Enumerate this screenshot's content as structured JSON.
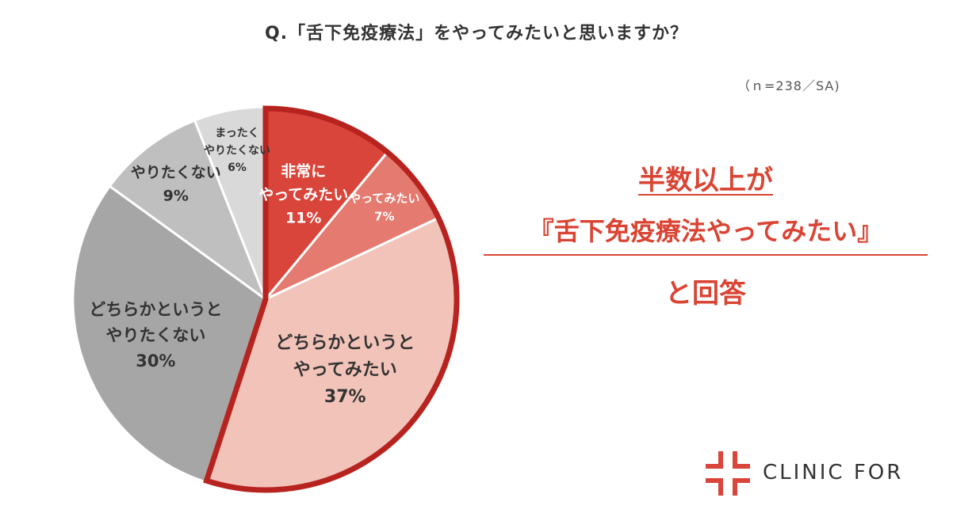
{
  "title": "Q.「舌下免疫療法」をやってみたいと思いますか？",
  "sample_note": "（ｎ=238／SA)",
  "message": {
    "line1": "半数以上が",
    "line2": "『舌下免疫療法やってみたい』",
    "line3": "と回答"
  },
  "logo": {
    "text": "CLINIC FOR"
  },
  "chart_data": {
    "type": "pie",
    "title": "",
    "slices": [
      {
        "label": "非常に\nやってみたい",
        "value": 11,
        "display": "11%",
        "color": "#d9453a",
        "highlight": true
      },
      {
        "label": "やってみたい",
        "value": 7,
        "display": "7%",
        "color": "#e47a70",
        "highlight": true
      },
      {
        "label": "どちらかというと\nやってみたい",
        "value": 37,
        "display": "37%",
        "color": "#f2c3b9",
        "highlight": true
      },
      {
        "label": "どちらかというと\nやりたくない",
        "value": 30,
        "display": "30%",
        "color": "#a6a6a6",
        "highlight": false
      },
      {
        "label": "やりたくない",
        "value": 9,
        "display": "9%",
        "color": "#bfbfbf",
        "highlight": false
      },
      {
        "label": "まったく\nやりたくない",
        "value": 6,
        "display": "6%",
        "color": "#d9d9d9",
        "highlight": false
      }
    ],
    "start": "12 o'clock",
    "direction": "clockwise",
    "highlight_color": "#b7231f"
  }
}
